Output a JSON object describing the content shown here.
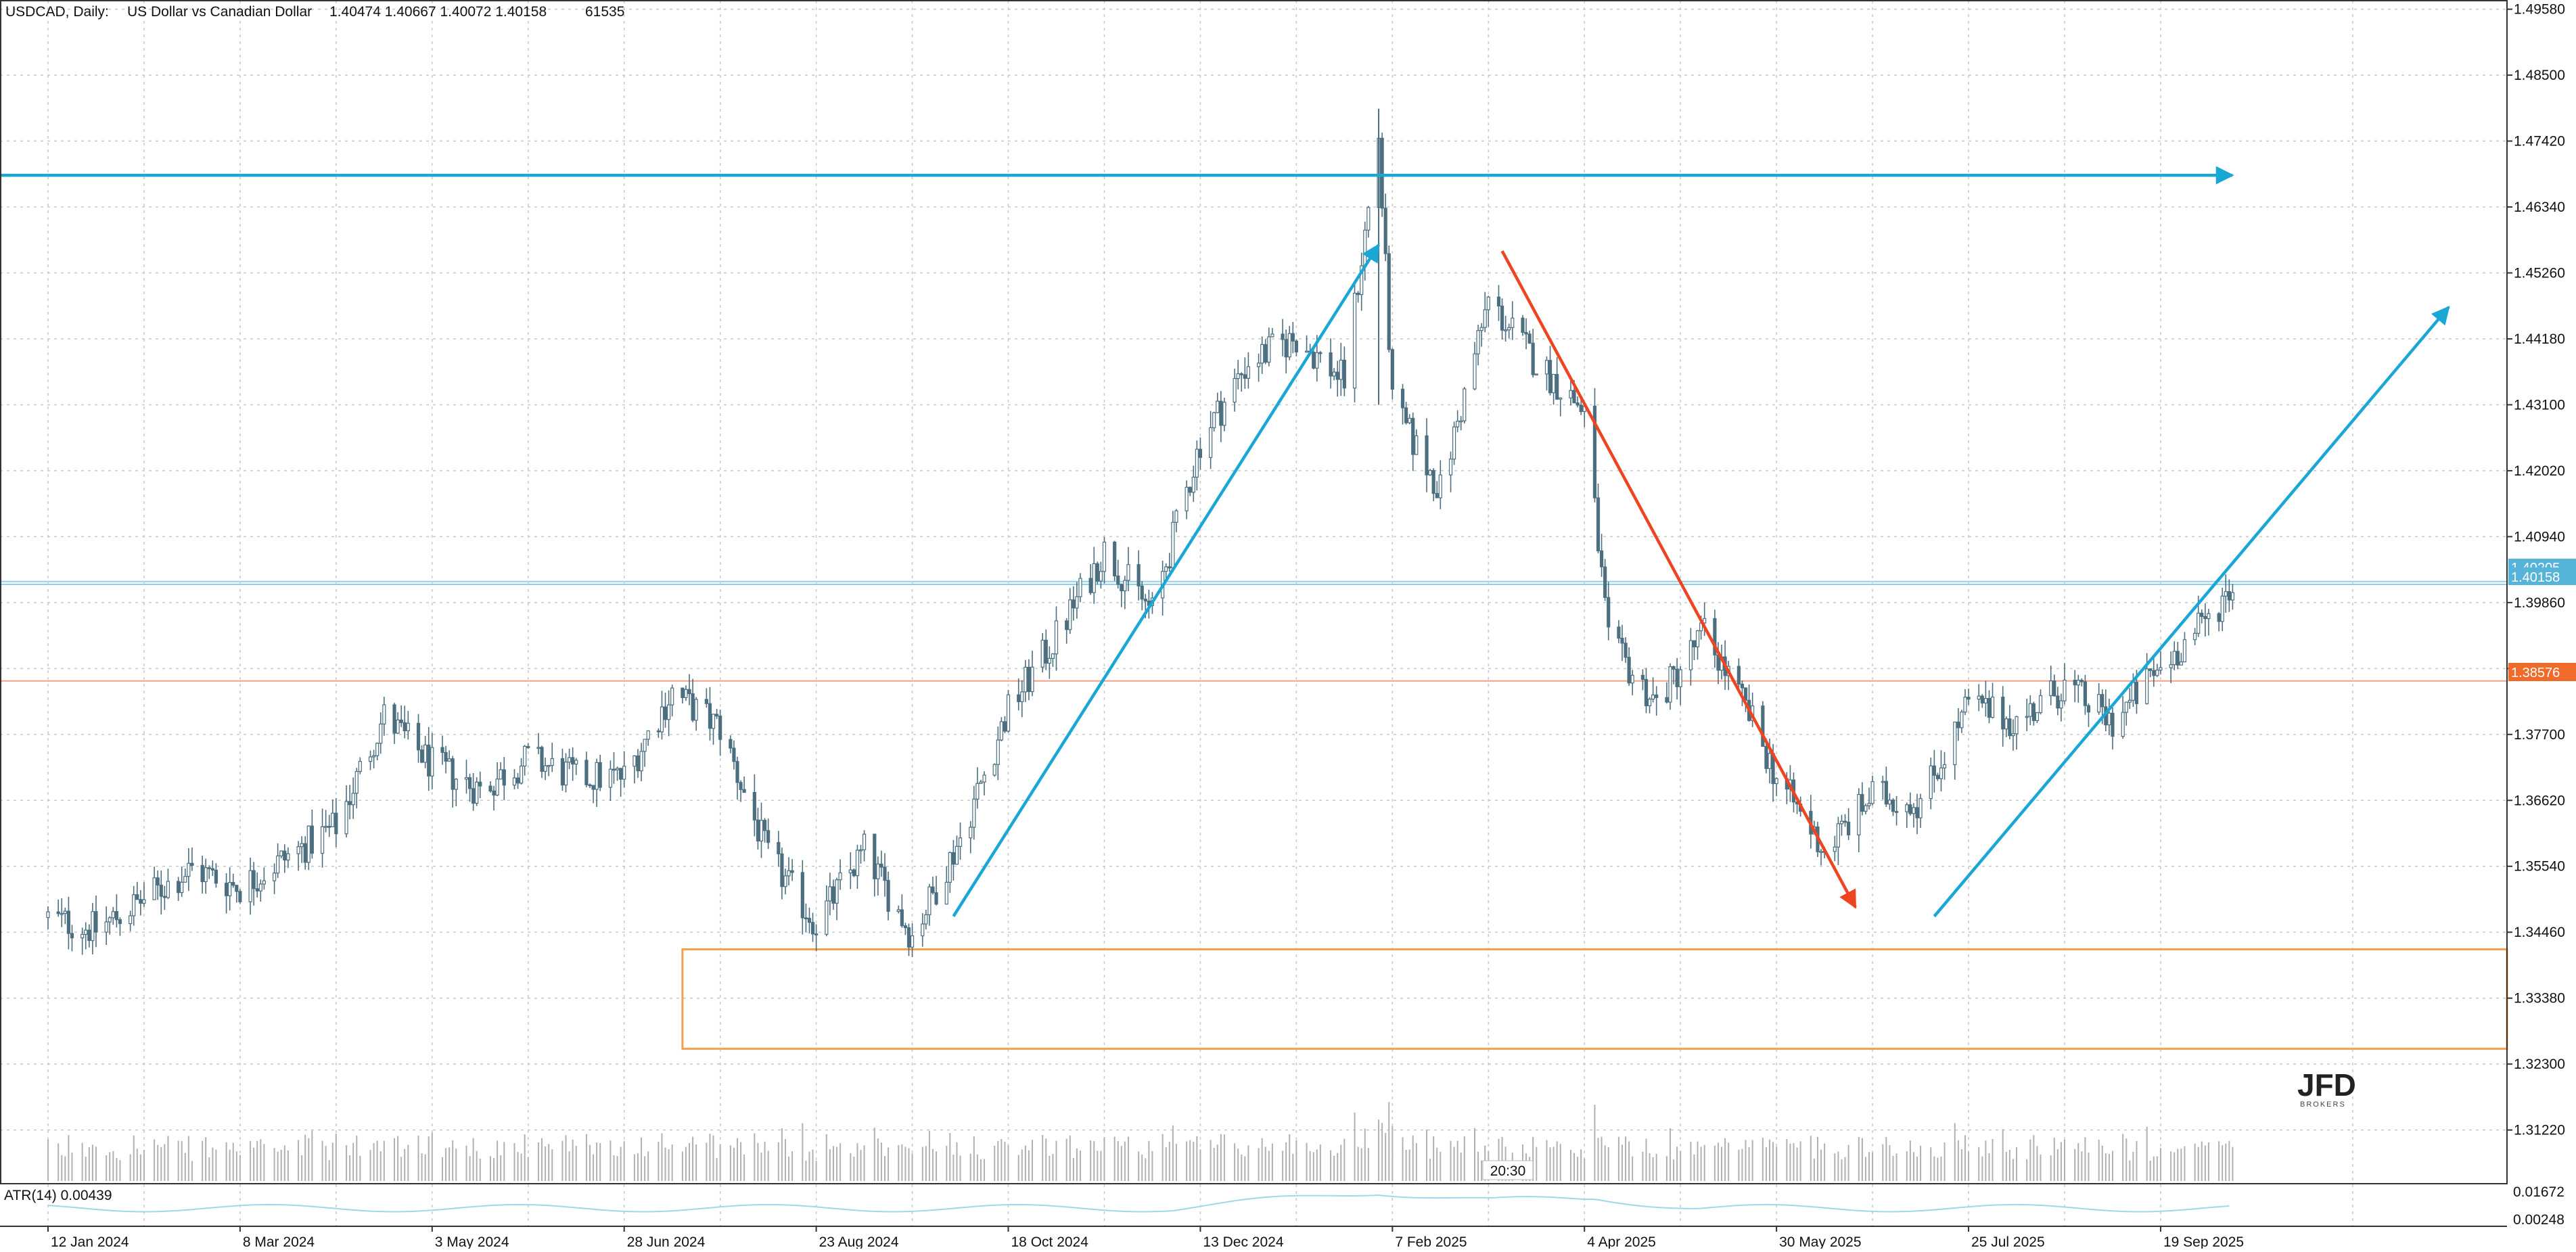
{
  "header": {
    "symbol": "USDCAD, Daily:",
    "description": "US Dollar vs Canadian Dollar",
    "ohlc": "1.40474 1.40667 1.40072 1.40158",
    "volume": "61535"
  },
  "price_axis": {
    "ticks": [
      "1.49580",
      "1.48500",
      "1.47420",
      "1.46340",
      "1.45260",
      "1.44180",
      "1.43100",
      "1.42020",
      "1.40940",
      "1.39860",
      "1.38780",
      "1.37700",
      "1.36620",
      "1.35540",
      "1.34460",
      "1.33380",
      "1.32300",
      "1.31220"
    ],
    "current_bid_label": "1.40158",
    "current_ask_label": "1.40205",
    "level_label": "1.38576"
  },
  "indicator": {
    "label": "ATR(14) 0.00439",
    "ticks": [
      "0.01672",
      "0.00248"
    ]
  },
  "time_axis": {
    "labels": [
      "12 Jan 2024",
      "8 Mar 2024",
      "3 May 2024",
      "28 Jun 2024",
      "23 Aug 2024",
      "18 Oct 2024",
      "13 Dec 2024",
      "7 Feb 2025",
      "4 Apr 2025",
      "30 May 2025",
      "25 Jul 2025",
      "19 Sep 2025"
    ]
  },
  "countdown": "20:30",
  "logo": {
    "main": "JFD",
    "sub": "BROKERS"
  },
  "colors": {
    "candle": "#4c6f80",
    "grid": "#c8c8c8",
    "accent_blue": "#1aa7d6",
    "accent_red": "#ee4422",
    "zone_orange": "#f5a04a",
    "level_line": "#f4a08a",
    "bid_label_bg": "#56b4d9",
    "level_label_bg": "#f06a2a",
    "volume": "#b0b0b0",
    "atr": "#9fd8e8"
  },
  "chart_data": {
    "type": "candlestick",
    "symbol": "USDCAD",
    "timeframe": "Daily",
    "price_range": [
      1.3095,
      1.4962
    ],
    "current_price": 1.40158,
    "key_levels": [
      {
        "value": 1.4686,
        "style": "blue line with arrow"
      },
      {
        "value": 1.38576,
        "style": "red horizontal line"
      },
      {
        "value": 1.40205,
        "style": "ask line"
      },
      {
        "value": 1.40158,
        "style": "bid line"
      }
    ],
    "zones": [
      {
        "from": 1.3255,
        "to": 1.3418,
        "start": "15 Jul 2024"
      }
    ],
    "price_path": [
      [
        "12 Jan 2024",
        1.347
      ],
      [
        "26 Jan 2024",
        1.345
      ],
      [
        "9 Feb 2024",
        1.35
      ],
      [
        "23 Feb 2024",
        1.355
      ],
      [
        "8 Mar 2024",
        1.352
      ],
      [
        "22 Mar 2024",
        1.357
      ],
      [
        "5 Apr 2024",
        1.362
      ],
      [
        "19 Apr 2024",
        1.38
      ],
      [
        "3 May 2024",
        1.372
      ],
      [
        "17 May 2024",
        1.368
      ],
      [
        "31 May 2024",
        1.373
      ],
      [
        "14 Jun 2024",
        1.37
      ],
      [
        "28 Jun 2024",
        1.37
      ],
      [
        "12 Jul 2024",
        1.384
      ],
      [
        "26 Jul 2024",
        1.378
      ],
      [
        "9 Aug 2024",
        1.357
      ],
      [
        "23 Aug 2024",
        1.346
      ],
      [
        "6 Sep 2024",
        1.358
      ],
      [
        "20 Sep 2024",
        1.344
      ],
      [
        "4 Oct 2024",
        1.36
      ],
      [
        "18 Oct 2024",
        1.381
      ],
      [
        "1 Nov 2024",
        1.393
      ],
      [
        "15 Nov 2024",
        1.407
      ],
      [
        "29 Nov 2024",
        1.397
      ],
      [
        "13 Dec 2024",
        1.425
      ],
      [
        "27 Dec 2024",
        1.438
      ],
      [
        "10 Jan 2025",
        1.442
      ],
      [
        "24 Jan 2025",
        1.435
      ],
      [
        "3 Feb 2025",
        1.475
      ],
      [
        "7 Feb 2025",
        1.431
      ],
      [
        "21 Feb 2025",
        1.417
      ],
      [
        "7 Mar 2025",
        1.448
      ],
      [
        "21 Mar 2025",
        1.438
      ],
      [
        "4 Apr 2025",
        1.43
      ],
      [
        "11 Apr 2025",
        1.392
      ],
      [
        "25 Apr 2025",
        1.382
      ],
      [
        "9 May 2025",
        1.394
      ],
      [
        "23 May 2025",
        1.379
      ],
      [
        "30 May 2025",
        1.37
      ],
      [
        "13 Jun 2025",
        1.358
      ],
      [
        "27 Jun 2025",
        1.367
      ],
      [
        "11 Jul 2025",
        1.366
      ],
      [
        "25 Jul 2025",
        1.382
      ],
      [
        "8 Aug 2025",
        1.379
      ],
      [
        "22 Aug 2025",
        1.385
      ],
      [
        "5 Sep 2025",
        1.379
      ],
      [
        "19 Sep 2025",
        1.388
      ],
      [
        "3 Oct 2025",
        1.396
      ],
      [
        "10 Oct 2025",
        1.4016
      ]
    ],
    "annotations": [
      {
        "type": "arrow",
        "color": "blue",
        "from": [
          "2 Oct 2024",
          1.3472
        ],
        "to": [
          "3 Feb 2025",
          1.4572
        ]
      },
      {
        "type": "arrow",
        "color": "red",
        "from": [
          "11 Mar 2025",
          1.4562
        ],
        "to": [
          "22 Jun 2025",
          1.3487
        ]
      },
      {
        "type": "arrow",
        "color": "blue",
        "from": [
          "15 Jul 2025",
          1.3472
        ],
        "to": [
          "12 Dec 2025",
          1.447
        ]
      }
    ],
    "indicators": [
      {
        "name": "ATR(14)",
        "value": 0.00439,
        "range": [
          0.00248,
          0.01672
        ]
      }
    ],
    "volume_panel": true,
    "grid": true
  }
}
